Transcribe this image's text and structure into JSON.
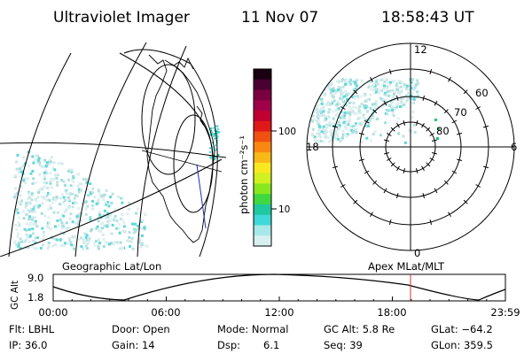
{
  "header": {
    "instrument": "Ultraviolet Imager",
    "date": "11 Nov 07",
    "time": "18:58:43 UT"
  },
  "colorbar": {
    "label": "photon cm⁻²s⁻¹",
    "tick_labels": [
      "100",
      "10"
    ],
    "colors_top_to_bottom": [
      "#1a0010",
      "#4a0030",
      "#7a0040",
      "#a0004a",
      "#c00030",
      "#e01818",
      "#f05010",
      "#f88810",
      "#f8b818",
      "#f8e820",
      "#d0f020",
      "#88e820",
      "#40d840",
      "#20c8a0",
      "#40d8d8",
      "#a8e8e8",
      "#d8f0f0"
    ]
  },
  "left_panel": {
    "label": "Geographic Lat/Lon"
  },
  "right_panel": {
    "label": "Apex MLat/MLT",
    "mlt_labels": [
      "12",
      "18",
      "6",
      "0"
    ],
    "lat_labels": [
      "60",
      "70",
      "80"
    ]
  },
  "altitude_plot": {
    "ylabel": "GC Alt",
    "yticks": [
      "9.0",
      "1.8"
    ],
    "xticks": [
      "00:00",
      "06:00",
      "12:00",
      "18:00",
      "23:59"
    ],
    "marker_color": "#d03030"
  },
  "info": {
    "filter": "Flt: LBHL",
    "door": "Door: Open",
    "mode": "Mode: Normal",
    "gc_alt": "GC Alt: 5.8 Re",
    "glat": "GLat: −64.2",
    "ip": "IP: 36.0",
    "gain": "Gain: 14",
    "dsp_label": "Dsp:",
    "dsp_value": "6.1",
    "seq": "Seq: 39",
    "glon": "GLon: 359.5"
  }
}
